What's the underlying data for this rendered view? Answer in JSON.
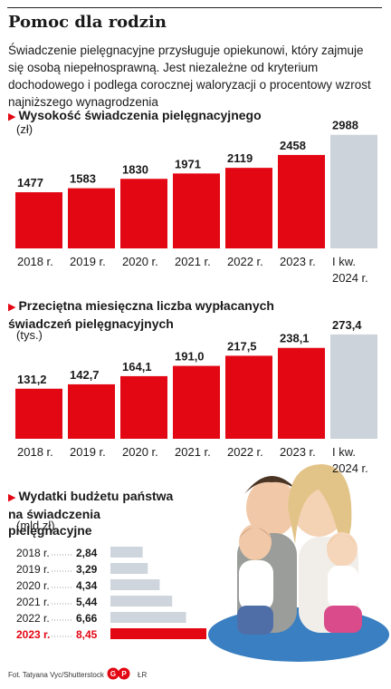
{
  "title": "Pomoc dla rodzin",
  "lead": "Świadczenie pielęgnacyjne przysługuje opiekunowi, który zajmuje się osobą niepełnosprawną. Jest niezależne od kryterium dochodowego i podlega corocznej waloryzacji o procentowy wzrost najniższego wynagrodzenia",
  "colors": {
    "accent": "#e30613",
    "forecast": "#cdd3da",
    "budget_gray": "#cfd5dc",
    "leader": "#999999"
  },
  "icons": {
    "section_marker": "triangle-right-icon"
  },
  "footer": {
    "credit": "Fot. Tatyana Vyc/Shutterstock",
    "logo": "GP",
    "initials": "ŁR"
  },
  "chart_data": [
    {
      "type": "bar",
      "title": "Wysokość świadczenia pielęgnacyjnego",
      "unit": "(zł)",
      "categories": [
        "2018 r.",
        "2019 r.",
        "2020 r.",
        "2021 r.",
        "2022 r.",
        "2023 r.",
        "I kw. 2024 r."
      ],
      "values": [
        1477,
        1583,
        1830,
        1971,
        2119,
        2458,
        2988
      ],
      "labels": [
        "1477",
        "1583",
        "1830",
        "1971",
        "2119",
        "2458",
        "2988"
      ],
      "highlight": [
        false,
        false,
        false,
        false,
        false,
        false,
        true
      ],
      "ylim": [
        0,
        3100
      ]
    },
    {
      "type": "bar",
      "title": "Przeciętna miesięczna liczba wypłacanych świadczeń pielęgnacyjnych",
      "unit": "(tys.)",
      "categories": [
        "2018 r.",
        "2019 r.",
        "2020 r.",
        "2021 r.",
        "2022 r.",
        "2023 r.",
        "I kw. 2024 r."
      ],
      "values": [
        131.2,
        142.7,
        164.1,
        191.0,
        217.5,
        238.1,
        273.4
      ],
      "labels": [
        "131,2",
        "142,7",
        "164,1",
        "191,0",
        "217,5",
        "238,1",
        "273,4"
      ],
      "highlight": [
        false,
        false,
        false,
        false,
        false,
        false,
        true
      ],
      "ylim": [
        0,
        285
      ]
    },
    {
      "type": "bar",
      "orientation": "horizontal",
      "title": "Wydatki budżetu państwa na świadczenia pielęgnacyjne",
      "unit": "(mld zł)",
      "categories": [
        "2018 r.",
        "2019 r.",
        "2020 r.",
        "2021 r.",
        "2022 r.",
        "2023 r."
      ],
      "values": [
        2.84,
        3.29,
        4.34,
        5.44,
        6.66,
        8.45
      ],
      "labels": [
        "2,84",
        "3,29",
        "4,34",
        "5,44",
        "6,66",
        "8,45"
      ],
      "highlight": [
        false,
        false,
        false,
        false,
        false,
        true
      ],
      "xlim": [
        0,
        8.45
      ]
    }
  ]
}
